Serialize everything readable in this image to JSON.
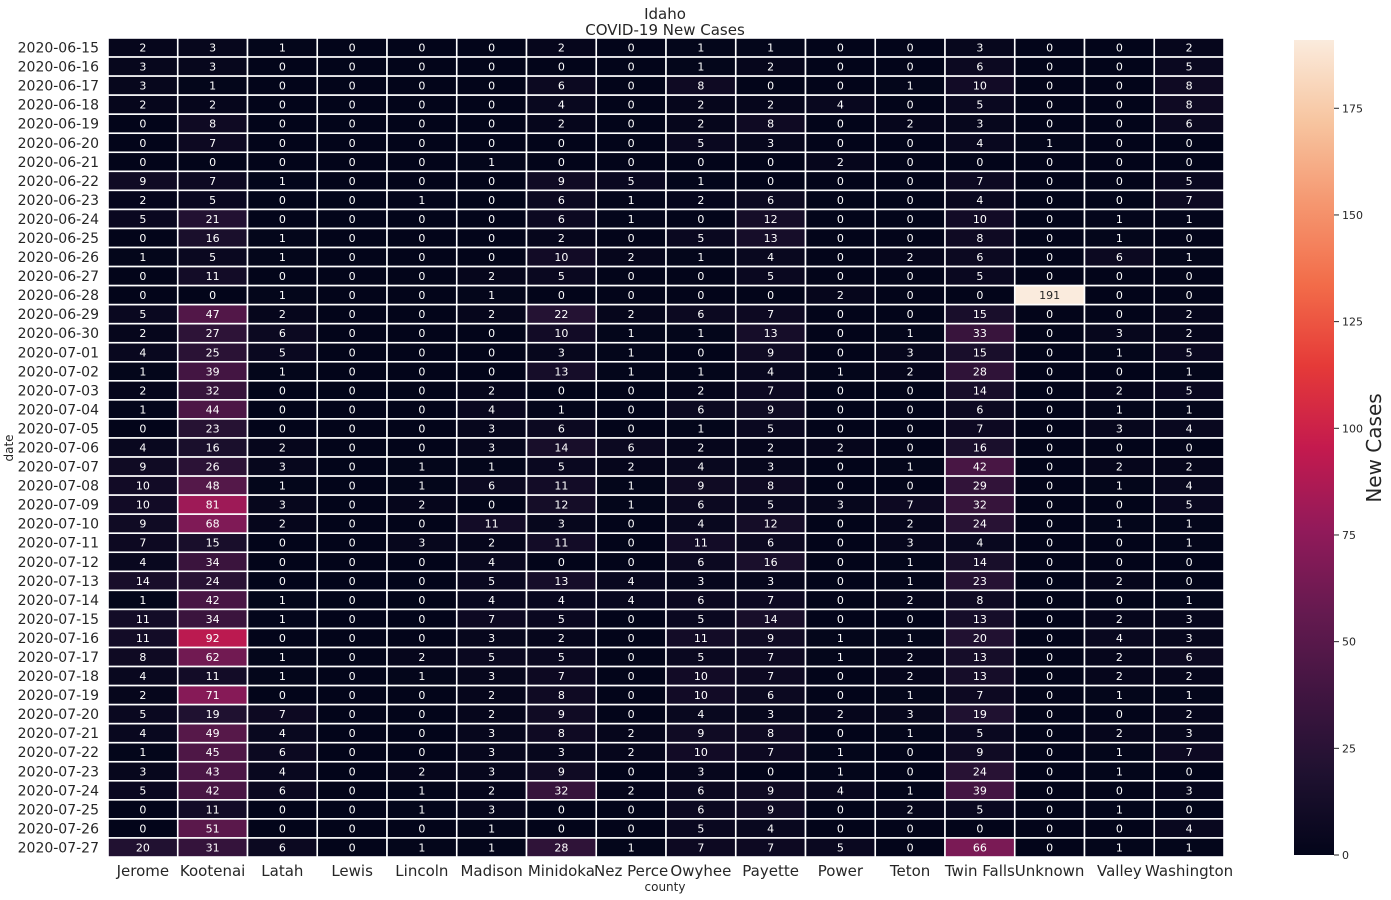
{
  "chart_data": {
    "type": "heatmap",
    "title": "Idaho",
    "subtitle": "COVID-19 New Cases",
    "xlabel": "county",
    "ylabel": "date",
    "colorbar_label": "New Cases",
    "colorbar_ticks": [
      "0",
      "25",
      "50",
      "75",
      "100",
      "125",
      "150",
      "175"
    ],
    "colorbar_tick_values": [
      0,
      25,
      50,
      75,
      100,
      125,
      150,
      175
    ],
    "vmin": 0,
    "vmax": 191,
    "colormap": "rocket",
    "counties": [
      "Jerome",
      "Kootenai",
      "Latah",
      "Lewis",
      "Lincoln",
      "Madison",
      "Minidoka",
      "Nez Perce",
      "Owyhee",
      "Payette",
      "Power",
      "Teton",
      "Twin Falls",
      "Unknown",
      "Valley",
      "Washington"
    ],
    "dates": [
      "2020-06-15",
      "2020-06-16",
      "2020-06-17",
      "2020-06-18",
      "2020-06-19",
      "2020-06-20",
      "2020-06-21",
      "2020-06-22",
      "2020-06-23",
      "2020-06-24",
      "2020-06-25",
      "2020-06-26",
      "2020-06-27",
      "2020-06-28",
      "2020-06-29",
      "2020-06-30",
      "2020-07-01",
      "2020-07-02",
      "2020-07-03",
      "2020-07-04",
      "2020-07-05",
      "2020-07-06",
      "2020-07-07",
      "2020-07-08",
      "2020-07-09",
      "2020-07-10",
      "2020-07-11",
      "2020-07-12",
      "2020-07-13",
      "2020-07-14",
      "2020-07-15",
      "2020-07-16",
      "2020-07-17",
      "2020-07-18",
      "2020-07-19",
      "2020-07-20",
      "2020-07-21",
      "2020-07-22",
      "2020-07-23",
      "2020-07-24",
      "2020-07-25",
      "2020-07-26",
      "2020-07-27"
    ],
    "values": [
      [
        2,
        3,
        1,
        0,
        0,
        0,
        2,
        0,
        1,
        1,
        0,
        0,
        3,
        0,
        0,
        2
      ],
      [
        3,
        3,
        0,
        0,
        0,
        0,
        0,
        0,
        1,
        2,
        0,
        0,
        6,
        0,
        0,
        5
      ],
      [
        3,
        1,
        0,
        0,
        0,
        0,
        6,
        0,
        8,
        0,
        0,
        1,
        10,
        0,
        0,
        8
      ],
      [
        2,
        2,
        0,
        0,
        0,
        0,
        4,
        0,
        2,
        2,
        4,
        0,
        5,
        0,
        0,
        8
      ],
      [
        0,
        8,
        0,
        0,
        0,
        0,
        2,
        0,
        2,
        8,
        0,
        2,
        3,
        0,
        0,
        6
      ],
      [
        0,
        7,
        0,
        0,
        0,
        0,
        0,
        0,
        5,
        3,
        0,
        0,
        4,
        1,
        0,
        0
      ],
      [
        0,
        0,
        0,
        0,
        0,
        1,
        0,
        0,
        0,
        0,
        2,
        0,
        0,
        0,
        0,
        0
      ],
      [
        9,
        7,
        1,
        0,
        0,
        0,
        9,
        5,
        1,
        0,
        0,
        0,
        7,
        0,
        0,
        5
      ],
      [
        2,
        5,
        0,
        0,
        1,
        0,
        6,
        1,
        2,
        6,
        0,
        0,
        4,
        0,
        0,
        7
      ],
      [
        5,
        21,
        0,
        0,
        0,
        0,
        6,
        1,
        0,
        12,
        0,
        0,
        10,
        0,
        1,
        1
      ],
      [
        0,
        16,
        1,
        0,
        0,
        0,
        2,
        0,
        5,
        13,
        0,
        0,
        8,
        0,
        1,
        0
      ],
      [
        1,
        5,
        1,
        0,
        0,
        0,
        10,
        2,
        1,
        4,
        0,
        2,
        6,
        0,
        6,
        1
      ],
      [
        0,
        11,
        0,
        0,
        0,
        2,
        5,
        0,
        0,
        5,
        0,
        0,
        5,
        0,
        0,
        0
      ],
      [
        0,
        0,
        1,
        0,
        0,
        1,
        0,
        0,
        0,
        0,
        2,
        0,
        0,
        191,
        0,
        0
      ],
      [
        5,
        47,
        2,
        0,
        0,
        2,
        22,
        2,
        6,
        7,
        0,
        0,
        15,
        0,
        0,
        2
      ],
      [
        2,
        27,
        6,
        0,
        0,
        0,
        10,
        1,
        1,
        13,
        0,
        1,
        33,
        0,
        3,
        2
      ],
      [
        4,
        25,
        5,
        0,
        0,
        0,
        3,
        1,
        0,
        9,
        0,
        3,
        15,
        0,
        1,
        5
      ],
      [
        1,
        39,
        1,
        0,
        0,
        0,
        13,
        1,
        1,
        4,
        1,
        2,
        28,
        0,
        0,
        1
      ],
      [
        2,
        32,
        0,
        0,
        0,
        2,
        0,
        0,
        2,
        7,
        0,
        0,
        14,
        0,
        2,
        5
      ],
      [
        1,
        44,
        0,
        0,
        0,
        4,
        1,
        0,
        6,
        9,
        0,
        0,
        6,
        0,
        1,
        1
      ],
      [
        0,
        23,
        0,
        0,
        0,
        3,
        6,
        0,
        1,
        5,
        0,
        0,
        7,
        0,
        3,
        4
      ],
      [
        4,
        16,
        2,
        0,
        0,
        3,
        14,
        6,
        2,
        2,
        2,
        0,
        16,
        0,
        0,
        0
      ],
      [
        9,
        26,
        3,
        0,
        1,
        1,
        5,
        2,
        4,
        3,
        0,
        1,
        42,
        0,
        2,
        2
      ],
      [
        10,
        48,
        1,
        0,
        1,
        6,
        11,
        1,
        9,
        8,
        0,
        0,
        29,
        0,
        1,
        4
      ],
      [
        10,
        81,
        3,
        0,
        2,
        0,
        12,
        1,
        6,
        5,
        3,
        7,
        32,
        0,
        0,
        5
      ],
      [
        9,
        68,
        2,
        0,
        0,
        11,
        3,
        0,
        4,
        12,
        0,
        2,
        24,
        0,
        1,
        1
      ],
      [
        7,
        15,
        0,
        0,
        3,
        2,
        11,
        0,
        11,
        6,
        0,
        3,
        4,
        0,
        0,
        1
      ],
      [
        4,
        34,
        0,
        0,
        0,
        4,
        0,
        0,
        6,
        16,
        0,
        1,
        14,
        0,
        0,
        0
      ],
      [
        14,
        24,
        0,
        0,
        0,
        5,
        13,
        4,
        3,
        3,
        0,
        1,
        23,
        0,
        2,
        0
      ],
      [
        1,
        42,
        1,
        0,
        0,
        4,
        4,
        4,
        6,
        7,
        0,
        2,
        8,
        0,
        0,
        1
      ],
      [
        11,
        34,
        1,
        0,
        0,
        7,
        5,
        0,
        5,
        14,
        0,
        0,
        13,
        0,
        2,
        3
      ],
      [
        11,
        92,
        0,
        0,
        0,
        3,
        2,
        0,
        11,
        9,
        1,
        1,
        20,
        0,
        4,
        3
      ],
      [
        8,
        62,
        1,
        0,
        2,
        5,
        5,
        0,
        5,
        7,
        1,
        2,
        13,
        0,
        2,
        6
      ],
      [
        4,
        11,
        1,
        0,
        1,
        3,
        7,
        0,
        10,
        7,
        0,
        2,
        13,
        0,
        2,
        2
      ],
      [
        2,
        71,
        0,
        0,
        0,
        2,
        8,
        0,
        10,
        6,
        0,
        1,
        7,
        0,
        1,
        1
      ],
      [
        5,
        19,
        7,
        0,
        0,
        2,
        9,
        0,
        4,
        3,
        2,
        3,
        19,
        0,
        0,
        2
      ],
      [
        4,
        49,
        4,
        0,
        0,
        3,
        8,
        2,
        9,
        8,
        0,
        1,
        5,
        0,
        2,
        3
      ],
      [
        1,
        45,
        6,
        0,
        0,
        3,
        3,
        2,
        10,
        7,
        1,
        0,
        9,
        0,
        1,
        7
      ],
      [
        3,
        43,
        4,
        0,
        2,
        3,
        9,
        0,
        3,
        0,
        1,
        0,
        24,
        0,
        1,
        0
      ],
      [
        5,
        42,
        6,
        0,
        1,
        2,
        32,
        2,
        6,
        9,
        4,
        1,
        39,
        0,
        0,
        3
      ],
      [
        0,
        11,
        0,
        0,
        1,
        3,
        0,
        0,
        6,
        9,
        0,
        2,
        5,
        0,
        1,
        0
      ],
      [
        0,
        51,
        0,
        0,
        0,
        1,
        0,
        0,
        5,
        4,
        0,
        0,
        0,
        0,
        0,
        4
      ],
      [
        20,
        31,
        6,
        0,
        1,
        1,
        28,
        1,
        7,
        7,
        5,
        0,
        66,
        0,
        1,
        1
      ]
    ]
  }
}
